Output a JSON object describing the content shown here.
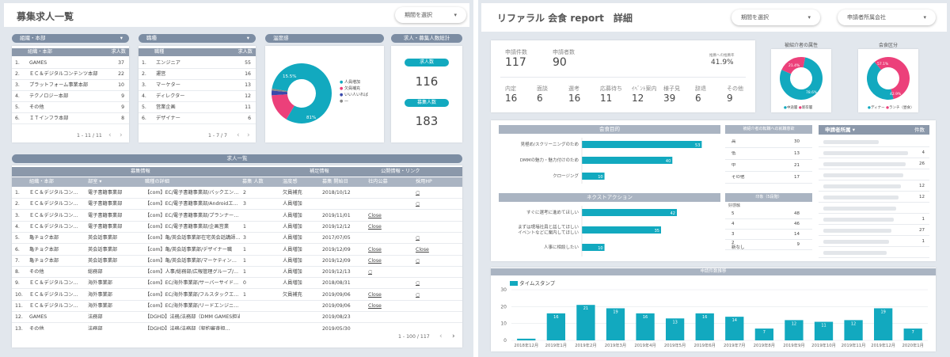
{
  "colors": {
    "accent": "#12a9bf",
    "pink": "#ec407a",
    "header": "#7c8da3"
  },
  "left": {
    "title": "募集求人一覧",
    "period": "期間を選択",
    "dept_card": {
      "header": "組織・本部",
      "col1": "組織・本部",
      "col2": "求人数",
      "rows": [
        {
          "n": "1.",
          "name": "GAMES",
          "v": "37"
        },
        {
          "n": "2.",
          "name": "ＥＣ＆デジタルコンテンツ本部",
          "v": "22"
        },
        {
          "n": "3.",
          "name": "プラットフォーム事業本部",
          "v": "10"
        },
        {
          "n": "4.",
          "name": "テクノロジー本部",
          "v": "9"
        },
        {
          "n": "5.",
          "name": "その他",
          "v": "9"
        },
        {
          "n": "6.",
          "name": "ＩＴインフラ本部",
          "v": "8"
        }
      ],
      "pager": "1 - 11 / 11"
    },
    "job_card": {
      "header": "職種",
      "col1": "職種",
      "col2": "求人数",
      "rows": [
        {
          "n": "1.",
          "name": "エンジニア",
          "v": "55"
        },
        {
          "n": "2.",
          "name": "運営",
          "v": "16"
        },
        {
          "n": "3.",
          "name": "マーケター",
          "v": "13"
        },
        {
          "n": "4.",
          "name": "ディレクター",
          "v": "12"
        },
        {
          "n": "5.",
          "name": "営業企画",
          "v": "11"
        },
        {
          "n": "6.",
          "name": "デザイナー",
          "v": "6"
        }
      ],
      "pager": "1 - 7 / 7"
    },
    "temp_card": {
      "header": "温度感",
      "slice_label_pink": "15.5%",
      "slice_label_teal": "81%",
      "legend": [
        "人員増加",
        "欠員補充",
        "いい人いれば",
        "—"
      ],
      "chart_data": {
        "type": "pie",
        "categories": [
          "人員増加",
          "欠員補充",
          "いい人いれば",
          "—"
        ],
        "values": [
          81,
          15.5,
          2.5,
          1
        ]
      }
    },
    "totals": {
      "header": "求人・募集人数総計",
      "label1": "求人数",
      "value1": "116",
      "label2": "募集人数",
      "value2": "183"
    },
    "list": {
      "header": "求人一覧",
      "groups": [
        "募集情報",
        "補足情報",
        "公開情報・リンク"
      ],
      "cols": [
        "組織・本部",
        "部室 ▾",
        "職種の詳細",
        "募集 人数",
        "温度感",
        "募集 開始日",
        "社内公募",
        "採用HP"
      ],
      "rows": [
        {
          "n": "1.",
          "org": "ＥＣ＆デジタルコン…",
          "dept": "電子書籍事業部",
          "detail": "【com】EC/電子書籍事業部/バックエン…",
          "num": "2",
          "temp": "欠員補充",
          "date": "2018/10/12",
          "internal": "",
          "hp": "○"
        },
        {
          "n": "2.",
          "org": "ＥＣ＆デジタルコン…",
          "dept": "電子書籍事業部",
          "detail": "【com】EC/電子書籍事業部/Androidエ…",
          "num": "3",
          "temp": "人員増加",
          "date": "",
          "internal": "",
          "hp": "○"
        },
        {
          "n": "3.",
          "org": "ＥＣ＆デジタルコン…",
          "dept": "電子書籍事業部",
          "detail": "【com】EC/電子書籍事業部/プランナー…",
          "num": "",
          "temp": "人員増加",
          "date": "2019/11/01",
          "internal": "Close",
          "hp": ""
        },
        {
          "n": "4.",
          "org": "ＥＣ＆デジタルコン…",
          "dept": "電子書籍事業部",
          "detail": "【com】EC/電子書籍事業部/企画営業",
          "num": "1",
          "temp": "人員増加",
          "date": "2019/12/12",
          "internal": "Close",
          "hp": ""
        },
        {
          "n": "5.",
          "org": "亀チョク本部",
          "dept": "英会話事業部",
          "detail": "【com】亀/英会話事業部在宅英会話講師…",
          "num": "3",
          "temp": "人員増加",
          "date": "2017/07/05",
          "internal": "",
          "hp": "○"
        },
        {
          "n": "6.",
          "org": "亀チョク本部",
          "dept": "英会話事業部",
          "detail": "【com】亀/英会話事業部/デザイナー職",
          "num": "1",
          "temp": "人員増加",
          "date": "2019/12/09",
          "internal": "Close",
          "hp": "Close"
        },
        {
          "n": "7.",
          "org": "亀チョク本部",
          "dept": "英会話事業部",
          "detail": "【com】亀/英会話事業部/マーケティン…",
          "num": "1",
          "temp": "人員増加",
          "date": "2019/12/09",
          "internal": "Close",
          "hp": "○"
        },
        {
          "n": "8.",
          "org": "その他",
          "dept": "総務部",
          "detail": "【com】人事/総務部/広報管理グループ/…",
          "num": "1",
          "temp": "人員増加",
          "date": "2019/12/13",
          "internal": "○",
          "hp": ""
        },
        {
          "n": "9.",
          "org": "ＥＣ＆デジタルコン…",
          "dept": "海外事業部",
          "detail": "【com】EC/海外事業部/サーバーサイド…",
          "num": "0",
          "temp": "人員増加",
          "date": "2018/08/31",
          "internal": "",
          "hp": "○"
        },
        {
          "n": "10.",
          "org": "ＥＣ＆デジタルコン…",
          "dept": "海外事業部",
          "detail": "【com】EC/海外事業部/フルスタックエ…",
          "num": "1",
          "temp": "欠員補充",
          "date": "2019/09/06",
          "internal": "Close",
          "hp": "○"
        },
        {
          "n": "11.",
          "org": "ＥＣ＆デジタルコン…",
          "dept": "海外事業部",
          "detail": "【com】EC/海外事業部/リードエンジニ…",
          "num": "",
          "temp": "",
          "date": "2019/09/06",
          "internal": "Close",
          "hp": ""
        },
        {
          "n": "12.",
          "org": "GAMES",
          "dept": "法務部",
          "detail": "【DGHD】法務/法務部（DMM GAMES担当…",
          "num": "",
          "temp": "",
          "date": "2019/08/23",
          "internal": "",
          "hp": ""
        },
        {
          "n": "13.",
          "org": "その他",
          "dept": "法務部",
          "detail": "【DGHD】法務/法務部（契約審査担…",
          "num": "",
          "temp": "",
          "date": "2019/05/30",
          "internal": "",
          "hp": ""
        }
      ],
      "pager": "1 - 100 / 117"
    }
  },
  "right": {
    "title": "リファラル 会食 report　詳細",
    "period": "期間を選択",
    "company": "申請者所属会社",
    "kpi": {
      "applied_label": "申請件数",
      "applied_value": "117",
      "people_label": "申請者数",
      "people_value": "90",
      "rate_label": "推薦への推薦率",
      "rate_value": "41.9%",
      "stages": [
        {
          "l": "内定",
          "v": "16"
        },
        {
          "l": "面談",
          "v": "6"
        },
        {
          "l": "選考",
          "v": "16"
        },
        {
          "l": "応募待ち",
          "v": "11"
        },
        {
          "l": "ｲﾍﾞﾝﾄ案内",
          "v": "12"
        },
        {
          "l": "様子見",
          "v": "39"
        },
        {
          "l": "辞退",
          "v": "6"
        },
        {
          "l": "その他",
          "v": "9"
        }
      ]
    },
    "donut1": {
      "header": "被紹介者の属性",
      "labels": [
        "21.4%",
        "78.6%"
      ],
      "legend": [
        "中途層",
        "新卒層"
      ],
      "chart_data": {
        "type": "pie",
        "categories": [
          "中途層",
          "新卒層"
        ],
        "values": [
          78.6,
          21.4
        ]
      }
    },
    "donut2": {
      "header": "会食区分",
      "labels": [
        "57.1%",
        "42.9%"
      ],
      "legend": [
        "ディナー",
        "ランチ（昼食）"
      ],
      "chart_data": {
        "type": "pie",
        "categories": [
          "ディナー",
          "ランチ（昼食）"
        ],
        "values": [
          42.9,
          57.1
        ]
      }
    },
    "purpose": {
      "header": "会食目的",
      "chart_data": {
        "type": "bar",
        "categories": [
          "見極め/スクリーニングのため",
          "DMMの魅力・魅力付けのため",
          "クロージング"
        ],
        "values": [
          53,
          40,
          10
        ]
      }
    },
    "nextaction": {
      "header": "ネクストアクション",
      "chart_data": {
        "type": "bar",
        "categories": [
          "すぐに選考に進めてほしい",
          "まずは現場社員と話してほしい\nイベントなどに案内してほしい",
          "人事に相談したい"
        ],
        "values": [
          42,
          35,
          10
        ]
      }
    },
    "interest": {
      "header": "被紹介者の転職への就職意欲",
      "rows": [
        {
          "l": "高",
          "v": "30"
        },
        {
          "l": "低",
          "v": "13"
        },
        {
          "l": "中",
          "v": "21"
        },
        {
          "l": "その他",
          "v": "17"
        }
      ]
    },
    "impression": {
      "header": "印象（5段階）",
      "sub": "好感触",
      "rows": [
        {
          "l": "5",
          "v": "48"
        },
        {
          "l": "4",
          "v": "46"
        },
        {
          "l": "3",
          "v": "14"
        },
        {
          "l": "2\n新なし",
          "v": "9"
        }
      ]
    },
    "affil": {
      "col1": "申請者所属 ▾",
      "col2": "件数",
      "values": [
        "",
        "4",
        "26",
        "",
        "12",
        "12",
        "",
        "1",
        "27",
        "1",
        ""
      ]
    },
    "trend": {
      "header": "申請件数推移",
      "legend": "タイムスタンプ",
      "chart_data": {
        "type": "bar",
        "categories": [
          "2018年12月",
          "2019年1月",
          "2019年2月",
          "2019年3月",
          "2019年4月",
          "2019年5月",
          "2019年6月",
          "2019年7月",
          "2019年8月",
          "2019年9月",
          "2019年10月",
          "2019年11月",
          "2019年12月",
          "2020年1月"
        ],
        "values": [
          1,
          16,
          21,
          19,
          16,
          13,
          16,
          14,
          7,
          12,
          11,
          12,
          19,
          7
        ],
        "ylim": [
          0,
          30
        ],
        "yticks": [
          "0",
          "10",
          "20",
          "30"
        ]
      }
    }
  }
}
